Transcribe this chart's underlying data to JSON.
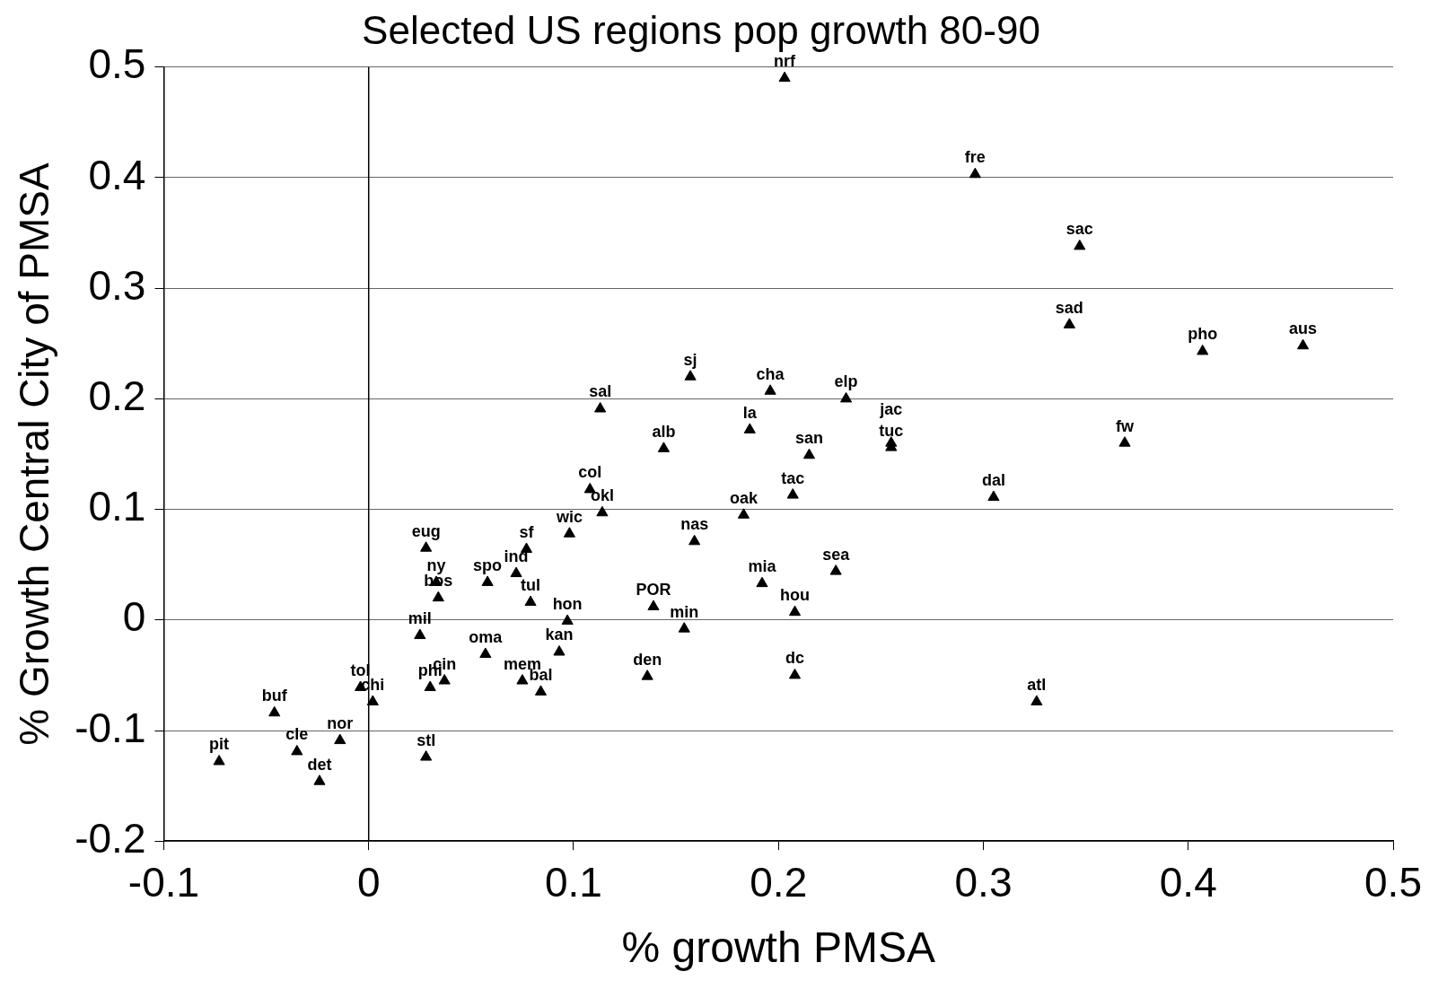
{
  "chart_data": {
    "type": "scatter",
    "title": "Selected US regions pop growth 80-90",
    "xlabel": "% growth PMSA",
    "ylabel": "% Growth Central City of PMSA",
    "series": [
      {
        "color": "#000000",
        "x": [
          0.203,
          0.296,
          0.347,
          0.342,
          0.407,
          0.456,
          0.369,
          0.305,
          0.326,
          0.255,
          0.255,
          0.233,
          0.196,
          0.157,
          0.113,
          0.186,
          0.215,
          0.144,
          0.207,
          0.183,
          0.108,
          0.114,
          0.098,
          0.159,
          0.228,
          0.192,
          0.208,
          0.139,
          0.154,
          0.208,
          0.136,
          0.097,
          0.093,
          0.075,
          0.084,
          0.057,
          0.079,
          0.077,
          0.072,
          0.058,
          0.028,
          0.033,
          0.034,
          0.025,
          0.03,
          0.037,
          0.028,
          -0.004,
          0.002,
          -0.046,
          -0.035,
          -0.014,
          -0.024,
          -0.073
        ],
        "values": [
          0.49,
          0.403,
          0.338,
          0.267,
          0.243,
          0.248,
          0.16,
          0.111,
          -0.074,
          0.16,
          0.156,
          0.2,
          0.207,
          0.22,
          0.191,
          0.172,
          0.149,
          0.155,
          0.113,
          0.095,
          0.118,
          0.097,
          0.078,
          0.071,
          0.044,
          0.033,
          0.007,
          0.012,
          -0.008,
          -0.05,
          -0.051,
          -0.001,
          -0.029,
          -0.055,
          -0.065,
          -0.031,
          0.016,
          0.064,
          0.042,
          0.034,
          0.065,
          0.034,
          0.02,
          -0.014,
          -0.061,
          -0.055,
          -0.124,
          -0.061,
          -0.074,
          -0.084,
          -0.119,
          -0.109,
          -0.146,
          -0.128
        ]
      }
    ],
    "annotations": [
      {
        "text": "nrf",
        "x": 0.203,
        "y": 0.49
      },
      {
        "text": "fre",
        "x": 0.296,
        "y": 0.403
      },
      {
        "text": "sac",
        "x": 0.347,
        "y": 0.338
      },
      {
        "text": "sad",
        "x": 0.342,
        "y": 0.267
      },
      {
        "text": "pho",
        "x": 0.407,
        "y": 0.243
      },
      {
        "text": "aus",
        "x": 0.456,
        "y": 0.248
      },
      {
        "text": "fw",
        "x": 0.369,
        "y": 0.16
      },
      {
        "text": "dal",
        "x": 0.305,
        "y": 0.111
      },
      {
        "text": "atl",
        "x": 0.326,
        "y": -0.074
      },
      {
        "text": "jac",
        "x": 0.255,
        "y": 0.16
      },
      {
        "text": "tuc",
        "x": 0.255,
        "y": 0.156
      },
      {
        "text": "elp",
        "x": 0.233,
        "y": 0.2
      },
      {
        "text": "cha",
        "x": 0.196,
        "y": 0.207
      },
      {
        "text": "sj",
        "x": 0.157,
        "y": 0.22
      },
      {
        "text": "sal",
        "x": 0.113,
        "y": 0.191
      },
      {
        "text": "la",
        "x": 0.186,
        "y": 0.172
      },
      {
        "text": "san",
        "x": 0.215,
        "y": 0.149
      },
      {
        "text": "alb",
        "x": 0.144,
        "y": 0.155
      },
      {
        "text": "tac",
        "x": 0.207,
        "y": 0.113
      },
      {
        "text": "oak",
        "x": 0.183,
        "y": 0.095
      },
      {
        "text": "col",
        "x": 0.108,
        "y": 0.118
      },
      {
        "text": "okl",
        "x": 0.114,
        "y": 0.097
      },
      {
        "text": "wic",
        "x": 0.098,
        "y": 0.078
      },
      {
        "text": "nas",
        "x": 0.159,
        "y": 0.071
      },
      {
        "text": "sea",
        "x": 0.228,
        "y": 0.044
      },
      {
        "text": "mia",
        "x": 0.192,
        "y": 0.033
      },
      {
        "text": "hou",
        "x": 0.208,
        "y": 0.007
      },
      {
        "text": "POR",
        "x": 0.139,
        "y": 0.012
      },
      {
        "text": "min",
        "x": 0.154,
        "y": -0.008
      },
      {
        "text": "dc",
        "x": 0.208,
        "y": -0.05
      },
      {
        "text": "den",
        "x": 0.136,
        "y": -0.051
      },
      {
        "text": "hon",
        "x": 0.097,
        "y": -0.001
      },
      {
        "text": "kan",
        "x": 0.093,
        "y": -0.029
      },
      {
        "text": "mem",
        "x": 0.075,
        "y": -0.055
      },
      {
        "text": "bal",
        "x": 0.084,
        "y": -0.065
      },
      {
        "text": "oma",
        "x": 0.057,
        "y": -0.031
      },
      {
        "text": "tul",
        "x": 0.079,
        "y": 0.016
      },
      {
        "text": "sf",
        "x": 0.077,
        "y": 0.064
      },
      {
        "text": "ind",
        "x": 0.072,
        "y": 0.042
      },
      {
        "text": "spo",
        "x": 0.058,
        "y": 0.034
      },
      {
        "text": "eug",
        "x": 0.028,
        "y": 0.065
      },
      {
        "text": "ny",
        "x": 0.033,
        "y": 0.034
      },
      {
        "text": "bos",
        "x": 0.034,
        "y": 0.02
      },
      {
        "text": "mil",
        "x": 0.025,
        "y": -0.014
      },
      {
        "text": "phi",
        "x": 0.03,
        "y": -0.061
      },
      {
        "text": "cin",
        "x": 0.037,
        "y": -0.055
      },
      {
        "text": "stl",
        "x": 0.028,
        "y": -0.124
      },
      {
        "text": "tol",
        "x": -0.004,
        "y": -0.061
      },
      {
        "text": "chi",
        "x": 0.002,
        "y": -0.074
      },
      {
        "text": "buf",
        "x": -0.046,
        "y": -0.084
      },
      {
        "text": "cle",
        "x": -0.035,
        "y": -0.119
      },
      {
        "text": "nor",
        "x": -0.014,
        "y": -0.109
      },
      {
        "text": "det",
        "x": -0.024,
        "y": -0.146
      },
      {
        "text": "pit",
        "x": -0.073,
        "y": -0.128
      }
    ],
    "xlim": [
      -0.1,
      0.5
    ],
    "xticks": [
      -0.1,
      0,
      0.1,
      0.2,
      0.3,
      0.4,
      0.5
    ],
    "ylim": [
      -0.2,
      0.5
    ],
    "yticks": [
      -0.2,
      -0.1,
      0,
      0.1,
      0.2,
      0.3,
      0.4,
      0.5
    ],
    "ref_lines": [
      {
        "axis": "x",
        "value": 0,
        "color": "#000000"
      }
    ],
    "grid": "y",
    "marker": "triangle",
    "legend": false
  }
}
